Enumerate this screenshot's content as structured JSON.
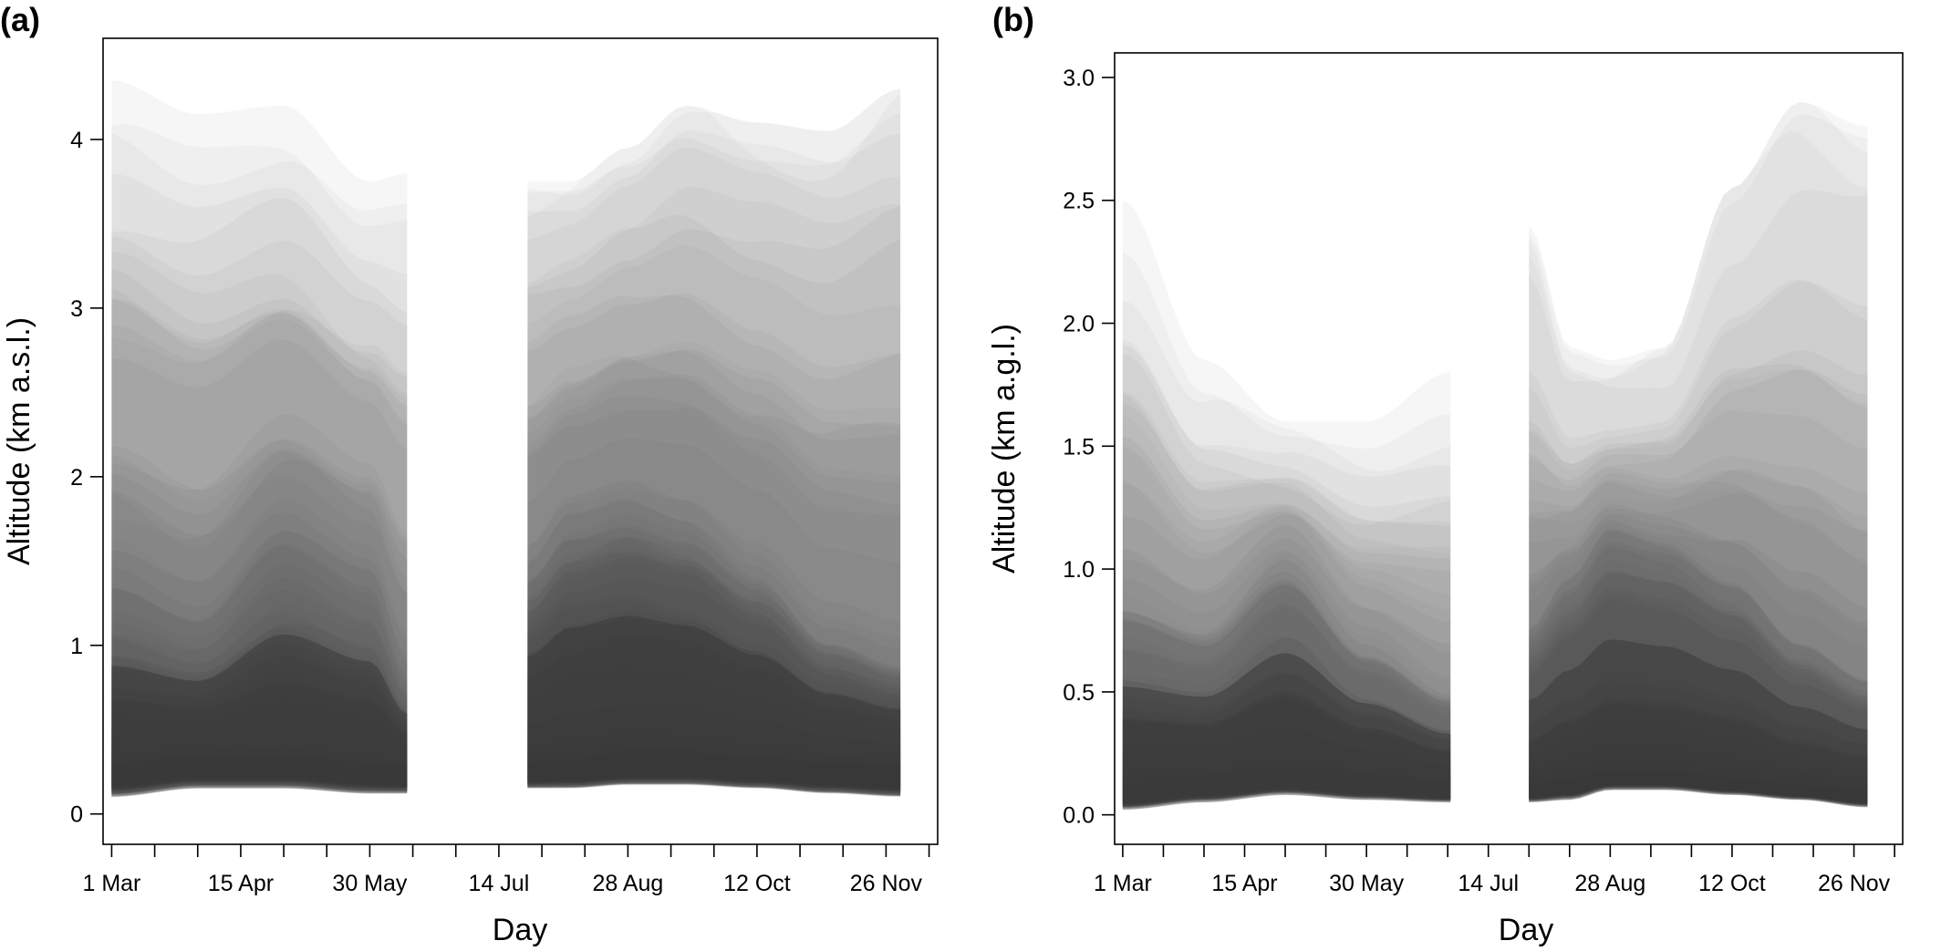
{
  "chart_data": [
    {
      "type": "area",
      "panel_label": "(a)",
      "xlabel": "Day",
      "ylabel": "Altitude (km a.s.l.)",
      "xtick_labels": [
        "1 Mar",
        "15 Apr",
        "30 May",
        "14 Jul",
        "28 Aug",
        "12 Oct",
        "26 Nov"
      ],
      "xtick_values": [
        0,
        45,
        90,
        135,
        180,
        225,
        270
      ],
      "minor_ticks_every": 15,
      "xlim": [
        -3,
        288
      ],
      "ylim": [
        -0.18,
        4.6
      ],
      "yticks": [
        0,
        1,
        2,
        3,
        4
      ],
      "ytick_labels": [
        "0",
        "1",
        "2",
        "3",
        "4"
      ],
      "grid": false,
      "data_gap": [
        103,
        145
      ],
      "series_style": "many overlapping semi-transparent grey altitude envelopes",
      "envelope_summary": {
        "x": [
          0,
          30,
          60,
          90,
          103,
          145,
          160,
          180,
          200,
          225,
          250,
          275
        ],
        "ymin": [
          0.1,
          0.15,
          0.15,
          0.12,
          0.12,
          0.15,
          0.15,
          0.17,
          0.17,
          0.15,
          0.12,
          0.1
        ],
        "ymax": [
          4.35,
          4.15,
          4.2,
          3.75,
          3.8,
          3.75,
          3.75,
          3.95,
          4.2,
          4.1,
          4.05,
          4.3
        ],
        "dense_core_low": [
          0.3,
          0.35,
          0.35,
          0.3,
          0.28,
          0.3,
          0.32,
          0.35,
          0.35,
          0.32,
          0.3,
          0.28
        ],
        "dense_core_high": [
          1.35,
          1.15,
          1.65,
          1.4,
          0.85,
          1.45,
          1.75,
          1.85,
          1.75,
          1.45,
          1.05,
          0.9
        ]
      }
    },
    {
      "type": "area",
      "panel_label": "(b)",
      "xlabel": "Day",
      "ylabel": "Altitude (km a.g.l.)",
      "xtick_labels": [
        "1 Mar",
        "15 Apr",
        "30 May",
        "14 Jul",
        "28 Aug",
        "12 Oct",
        "26 Nov"
      ],
      "xtick_values": [
        0,
        45,
        90,
        135,
        180,
        225,
        270
      ],
      "minor_ticks_every": 15,
      "xlim": [
        -3,
        288
      ],
      "ylim": [
        -0.12,
        3.1
      ],
      "yticks": [
        0.0,
        0.5,
        1.0,
        1.5,
        2.0,
        2.5,
        3.0
      ],
      "ytick_labels": [
        "0.0",
        "0.5",
        "1.0",
        "1.5",
        "2.0",
        "2.5",
        "3.0"
      ],
      "grid": false,
      "data_gap": [
        121,
        150
      ],
      "series_style": "many overlapping semi-transparent grey altitude envelopes",
      "envelope_summary": {
        "x": [
          0,
          30,
          60,
          90,
          121,
          150,
          165,
          180,
          200,
          225,
          250,
          275
        ],
        "ymin": [
          0.02,
          0.05,
          0.08,
          0.06,
          0.05,
          0.05,
          0.06,
          0.1,
          0.1,
          0.08,
          0.06,
          0.03
        ],
        "ymax": [
          2.5,
          1.85,
          1.6,
          1.6,
          1.8,
          2.4,
          1.9,
          1.85,
          1.9,
          2.55,
          2.9,
          2.8
        ],
        "dense_core_low": [
          0.12,
          0.15,
          0.18,
          0.15,
          0.12,
          0.12,
          0.15,
          0.18,
          0.18,
          0.15,
          0.12,
          0.1
        ],
        "dense_core_high": [
          0.85,
          0.75,
          1.05,
          0.7,
          0.5,
          0.75,
          0.95,
          1.15,
          1.1,
          0.95,
          0.7,
          0.55
        ]
      }
    }
  ]
}
